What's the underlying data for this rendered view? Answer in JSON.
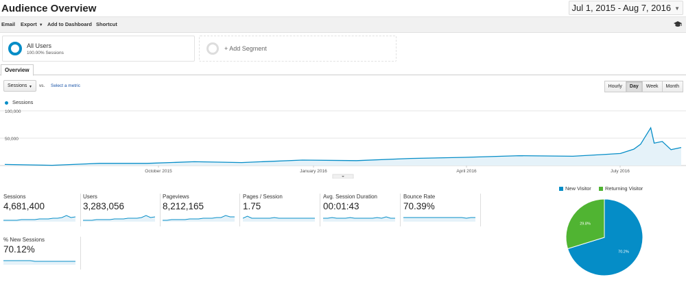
{
  "header": {
    "title": "Audience Overview",
    "date_range": "Jul 1, 2015 - Aug 7, 2016"
  },
  "toolbar": {
    "email": "Email",
    "export": "Export",
    "add_to_dashboard": "Add to Dashboard",
    "shortcut": "Shortcut",
    "icon": "graduation-cap-icon"
  },
  "segments": {
    "all_users_title": "All Users",
    "all_users_sub": "100.00% Sessions",
    "add_segment": "+ Add Segment"
  },
  "tabs": {
    "overview": "Overview"
  },
  "controls": {
    "metric": "Sessions",
    "vs": "vs.",
    "select_metric": "Select a metric",
    "granularity": [
      "Hourly",
      "Day",
      "Week",
      "Month"
    ],
    "active_granularity": "Day"
  },
  "colors": {
    "accent": "#058dc7",
    "returning": "#50b432",
    "fill": "#e5f2f9"
  },
  "chart_data": {
    "type": "area",
    "series": [
      {
        "name": "Sessions"
      }
    ],
    "y_ticks": [
      "100,000",
      "50,000"
    ],
    "ylim": [
      0,
      100000
    ],
    "x_ticks": [
      "October 2015",
      "January 2016",
      "April 2016",
      "July 2016"
    ],
    "x": [
      "2015-07",
      "2015-08",
      "2015-09",
      "2015-10",
      "2015-11",
      "2015-12",
      "2016-01",
      "2016-02",
      "2016-03",
      "2016-04",
      "2016-05",
      "2016-06",
      "2016-07-01",
      "2016-07-10",
      "2016-07-15",
      "2016-07-18",
      "2016-07-22",
      "2016-07-28",
      "2016-08-03",
      "2016-08-07"
    ],
    "values": [
      1000,
      1500,
      3000,
      5000,
      6000,
      6500,
      9000,
      10000,
      12000,
      16000,
      17000,
      18000,
      21000,
      31000,
      38000,
      70000,
      40000,
      45000,
      28000,
      34000
    ]
  },
  "metrics": [
    {
      "label": "Sessions",
      "value": "4,681,400"
    },
    {
      "label": "Users",
      "value": "3,283,056"
    },
    {
      "label": "Pageviews",
      "value": "8,212,165"
    },
    {
      "label": "Pages / Session",
      "value": "1.75"
    },
    {
      "label": "Avg. Session Duration",
      "value": "00:01:43"
    },
    {
      "label": "Bounce Rate",
      "value": "70.39%"
    },
    {
      "label": "% New Sessions",
      "value": "70.12%"
    }
  ],
  "pie": {
    "type": "pie",
    "legend": [
      "New Visitor",
      "Returning Visitor"
    ],
    "values": [
      70.2,
      29.8
    ],
    "labels": [
      "70.2%",
      "29.8%"
    ]
  }
}
